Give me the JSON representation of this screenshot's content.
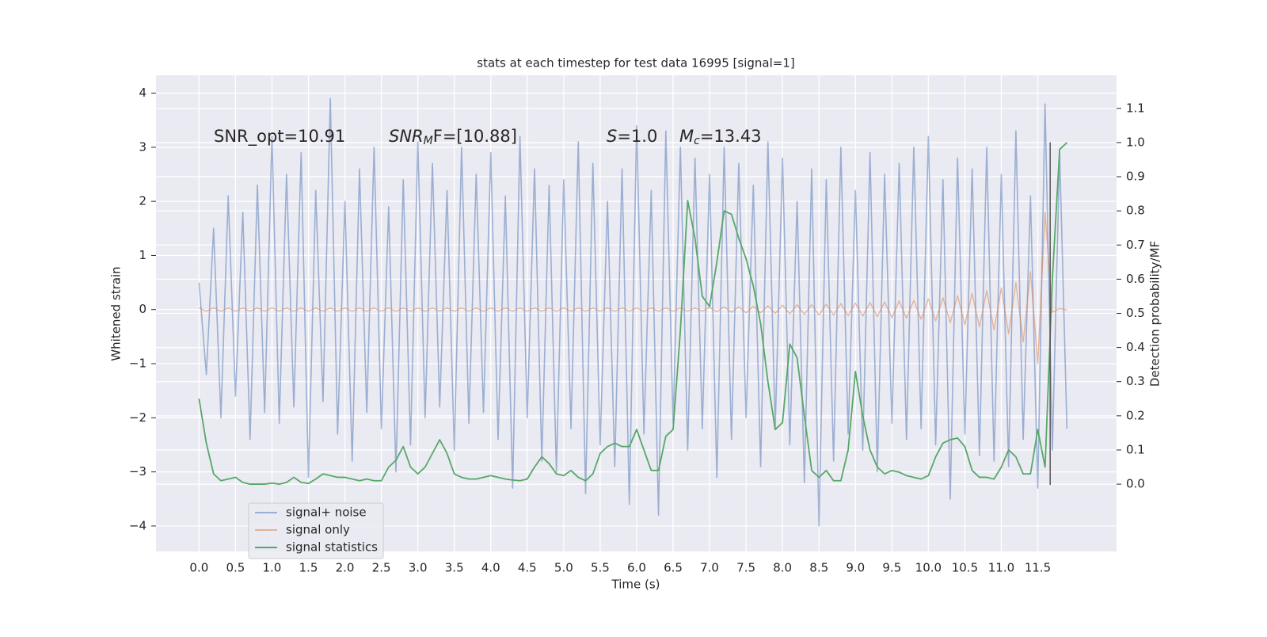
{
  "chart_data": {
    "type": "line",
    "title": "stats at each timestep for test data 16995 [signal=1]",
    "xlabel": "Time (s)",
    "ylabel": "Whitened strain",
    "y2label": "Detection probability/MF",
    "annotations": [
      {
        "parts": [
          "SNR_opt=10.91"
        ]
      },
      {
        "parts": [
          "SNR",
          "M",
          "F=[10.88]"
        ]
      },
      {
        "parts": [
          "S",
          "=1.0"
        ]
      },
      {
        "parts": [
          "M",
          "c",
          "=13.43"
        ]
      }
    ],
    "x": [
      0.0,
      0.1,
      0.2,
      0.3,
      0.4,
      0.5,
      0.6,
      0.7,
      0.8,
      0.9,
      1.0,
      1.1,
      1.2,
      1.3,
      1.4,
      1.5,
      1.6,
      1.7,
      1.8,
      1.9,
      2.0,
      2.1,
      2.2,
      2.3,
      2.4,
      2.5,
      2.6,
      2.7,
      2.8,
      2.9,
      3.0,
      3.1,
      3.2,
      3.3,
      3.4,
      3.5,
      3.6,
      3.7,
      3.8,
      3.9,
      4.0,
      4.1,
      4.2,
      4.3,
      4.4,
      4.5,
      4.6,
      4.7,
      4.8,
      4.9,
      5.0,
      5.1,
      5.2,
      5.3,
      5.4,
      5.5,
      5.6,
      5.7,
      5.8,
      5.9,
      6.0,
      6.1,
      6.2,
      6.3,
      6.4,
      6.5,
      6.6,
      6.7,
      6.8,
      6.9,
      7.0,
      7.1,
      7.2,
      7.3,
      7.4,
      7.5,
      7.6,
      7.7,
      7.8,
      7.9,
      8.0,
      8.1,
      8.2,
      8.3,
      8.4,
      8.5,
      8.6,
      8.7,
      8.8,
      8.9,
      9.0,
      9.1,
      9.2,
      9.3,
      9.4,
      9.5,
      9.6,
      9.7,
      9.8,
      9.9,
      10.0,
      10.1,
      10.2,
      10.3,
      10.4,
      10.5,
      10.6,
      10.7,
      10.8,
      10.9,
      11.0,
      11.1,
      11.2,
      11.3,
      11.4,
      11.5,
      11.6,
      11.7,
      11.8,
      11.9
    ],
    "series": [
      {
        "name": "signal+ noise",
        "color": "#4c72b0",
        "axis": "y",
        "values": [
          0.5,
          -1.2,
          1.5,
          -2.0,
          2.1,
          -1.6,
          1.8,
          -2.4,
          2.3,
          -1.9,
          3.2,
          -2.1,
          2.5,
          -1.8,
          2.9,
          -3.1,
          2.2,
          -1.7,
          3.9,
          -2.3,
          2.0,
          -2.8,
          2.6,
          -1.9,
          3.0,
          -2.2,
          1.9,
          -3.0,
          2.4,
          -2.5,
          3.1,
          -2.0,
          2.7,
          -1.8,
          2.2,
          -2.6,
          3.0,
          -2.1,
          2.5,
          -1.9,
          2.9,
          -2.4,
          2.1,
          -3.3,
          3.2,
          -2.0,
          2.6,
          -2.8,
          2.3,
          -3.0,
          2.4,
          -2.2,
          3.1,
          -3.4,
          2.7,
          -2.5,
          2.0,
          -2.9,
          2.6,
          -3.6,
          3.4,
          -2.3,
          2.2,
          -3.8,
          3.3,
          -2.1,
          3.0,
          -2.6,
          2.8,
          -2.2,
          2.5,
          -3.1,
          3.0,
          -2.4,
          2.7,
          -2.0,
          2.3,
          -2.9,
          3.1,
          -2.2,
          2.8,
          -2.5,
          2.0,
          -3.2,
          2.6,
          -4.0,
          2.4,
          -2.8,
          3.0,
          -2.3,
          2.2,
          -2.6,
          2.9,
          -3.0,
          2.5,
          -2.1,
          2.7,
          -2.4,
          3.0,
          -2.2,
          3.2,
          -2.5,
          2.4,
          -3.5,
          2.8,
          -2.3,
          2.6,
          -2.7,
          3.0,
          -2.8,
          2.5,
          -2.9,
          3.3,
          -2.4,
          2.1,
          -3.3,
          3.8,
          -2.6,
          2.9,
          -2.2
        ]
      },
      {
        "name": "signal only",
        "color": "#dd8452",
        "axis": "y",
        "values": [
          0.03,
          -0.03,
          0.03,
          -0.03,
          0.03,
          -0.03,
          0.03,
          -0.03,
          0.03,
          -0.03,
          0.03,
          -0.03,
          0.03,
          -0.03,
          0.03,
          -0.03,
          0.03,
          -0.03,
          0.03,
          -0.03,
          0.03,
          -0.03,
          0.03,
          -0.03,
          0.03,
          -0.03,
          0.03,
          -0.03,
          0.03,
          -0.03,
          0.03,
          -0.03,
          0.03,
          -0.03,
          0.03,
          -0.03,
          0.03,
          -0.03,
          0.03,
          -0.03,
          0.03,
          -0.03,
          0.03,
          -0.03,
          0.03,
          -0.03,
          0.03,
          -0.03,
          0.03,
          -0.03,
          0.03,
          -0.03,
          0.03,
          -0.03,
          0.03,
          -0.03,
          0.03,
          -0.03,
          0.03,
          -0.03,
          0.03,
          -0.03,
          0.03,
          -0.03,
          0.03,
          -0.03,
          0.03,
          -0.03,
          0.03,
          -0.03,
          0.04,
          -0.04,
          0.05,
          -0.05,
          0.05,
          -0.06,
          0.06,
          -0.06,
          0.07,
          -0.07,
          0.08,
          -0.08,
          0.09,
          -0.09,
          0.09,
          -0.1,
          0.1,
          -0.1,
          0.11,
          -0.11,
          0.12,
          -0.12,
          0.13,
          -0.13,
          0.14,
          -0.15,
          0.16,
          -0.16,
          0.17,
          -0.18,
          0.2,
          -0.21,
          0.22,
          -0.24,
          0.26,
          -0.28,
          0.3,
          -0.32,
          0.35,
          -0.38,
          0.4,
          -0.45,
          0.5,
          -0.6,
          0.7,
          -1.0,
          1.8,
          -0.05,
          0.02,
          -0.01
        ]
      },
      {
        "name": "signal statistics",
        "color": "#55a868",
        "axis": "y2",
        "values": [
          0.25,
          0.12,
          0.03,
          0.01,
          0.015,
          0.02,
          0.005,
          0,
          0,
          0,
          0.003,
          0,
          0.005,
          0.02,
          0.005,
          0.002,
          0.015,
          0.03,
          0.025,
          0.02,
          0.02,
          0.015,
          0.01,
          0.015,
          0.01,
          0.01,
          0.05,
          0.07,
          0.11,
          0.05,
          0.03,
          0.05,
          0.09,
          0.13,
          0.09,
          0.03,
          0.02,
          0.015,
          0.015,
          0.02,
          0.025,
          0.02,
          0.015,
          0.012,
          0.01,
          0.015,
          0.05,
          0.08,
          0.06,
          0.03,
          0.025,
          0.04,
          0.02,
          0.01,
          0.03,
          0.09,
          0.11,
          0.12,
          0.11,
          0.11,
          0.16,
          0.1,
          0.04,
          0.04,
          0.14,
          0.16,
          0.45,
          0.83,
          0.72,
          0.55,
          0.52,
          0.65,
          0.8,
          0.79,
          0.72,
          0.66,
          0.58,
          0.47,
          0.3,
          0.16,
          0.18,
          0.41,
          0.37,
          0.2,
          0.04,
          0.02,
          0.04,
          0.01,
          0.01,
          0.1,
          0.33,
          0.2,
          0.1,
          0.05,
          0.03,
          0.04,
          0.035,
          0.025,
          0.02,
          0.015,
          0.025,
          0.08,
          0.12,
          0.13,
          0.135,
          0.11,
          0.04,
          0.02,
          0.02,
          0.015,
          0.05,
          0.1,
          0.08,
          0.03,
          0.03,
          0.16,
          0.05,
          0.6,
          0.98,
          1.0
        ]
      }
    ],
    "vline": {
      "x": 11.67,
      "ymin": -3.24,
      "ymax": 3.09,
      "color": "#555555"
    },
    "xlim": [
      -0.59,
      12.58
    ],
    "ylim": [
      -4.47,
      4.33
    ],
    "y2lim": [
      -0.197,
      1.197
    ],
    "xticks": [
      {
        "value": 0,
        "label": "0.0"
      },
      {
        "value": 0.5,
        "label": "0.5"
      },
      {
        "value": 1,
        "label": "1.0"
      },
      {
        "value": 1.5,
        "label": "1.5"
      },
      {
        "value": 2,
        "label": "2.0"
      },
      {
        "value": 2.5,
        "label": "2.5"
      },
      {
        "value": 3,
        "label": "3.0"
      },
      {
        "value": 3.5,
        "label": "3.5"
      },
      {
        "value": 4,
        "label": "4.0"
      },
      {
        "value": 4.5,
        "label": "4.5"
      },
      {
        "value": 5,
        "label": "5.0"
      },
      {
        "value": 5.5,
        "label": "5.5"
      },
      {
        "value": 6,
        "label": "6.0"
      },
      {
        "value": 6.5,
        "label": "6.5"
      },
      {
        "value": 7,
        "label": "7.0"
      },
      {
        "value": 7.5,
        "label": "7.5"
      },
      {
        "value": 8,
        "label": "8.0"
      },
      {
        "value": 8.5,
        "label": "8.5"
      },
      {
        "value": 9,
        "label": "9.0"
      },
      {
        "value": 9.5,
        "label": "9.5"
      },
      {
        "value": 10,
        "label": "10.0"
      },
      {
        "value": 10.5,
        "label": "10.5"
      },
      {
        "value": 11,
        "label": "11.0"
      },
      {
        "value": 11.5,
        "label": "11.5"
      }
    ],
    "yticks": [
      {
        "value": -4,
        "label": "−4"
      },
      {
        "value": -3,
        "label": "−3"
      },
      {
        "value": -2,
        "label": "−2"
      },
      {
        "value": -1,
        "label": "−1"
      },
      0,
      1,
      2,
      3,
      4
    ],
    "y2ticks": [
      {
        "value": 0,
        "label": "0.0"
      },
      0.1,
      0.2,
      0.3,
      0.4,
      0.5,
      0.6,
      0.7,
      0.8,
      0.9,
      {
        "value": 1,
        "label": "1.0"
      },
      1.1
    ],
    "grid": true,
    "legend": "lower left"
  }
}
